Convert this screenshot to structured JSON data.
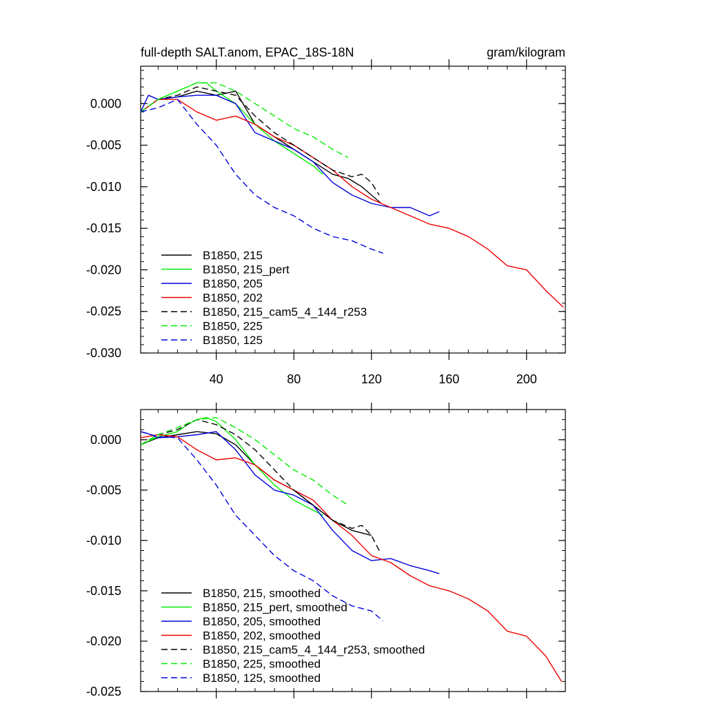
{
  "chart_data": [
    {
      "type": "line",
      "title": "full-depth SALT.anom, EPAC_18S-18N",
      "title_right": "gram/kilogram",
      "xlim": [
        1,
        220
      ],
      "ylim": [
        -0.03,
        0.0045
      ],
      "xticks": [
        40,
        80,
        120,
        160,
        200
      ],
      "xtick_labels": [
        "40",
        "80",
        "120",
        "160",
        "200"
      ],
      "yticks": [
        0.0,
        -0.005,
        -0.01,
        -0.015,
        -0.02,
        -0.025,
        -0.03
      ],
      "ytick_labels": [
        "0.000",
        "-0.005",
        "-0.010",
        "-0.015",
        "-0.020",
        "-0.025",
        "-0.030"
      ],
      "legend_position": "bottom-left",
      "series": [
        {
          "name": "B1850, 215",
          "color": "#000000",
          "dash": "solid",
          "x": [
            1,
            10,
            20,
            30,
            40,
            50,
            60,
            70,
            80,
            90,
            100,
            108,
            115,
            120,
            125
          ],
          "y": [
            -0.001,
            0.0005,
            0.0008,
            0.0015,
            0.001,
            0.0015,
            -0.0025,
            -0.004,
            -0.0055,
            -0.007,
            -0.0085,
            -0.009,
            -0.01,
            -0.011,
            -0.012
          ]
        },
        {
          "name": "B1850, 215_pert",
          "color": "#00ee00",
          "dash": "solid",
          "x": [
            1,
            10,
            20,
            25,
            30,
            35,
            40,
            50,
            60,
            70,
            80,
            90,
            95
          ],
          "y": [
            -0.001,
            0.0005,
            0.0015,
            0.002,
            0.0025,
            0.0025,
            0.0015,
            0.0,
            -0.0025,
            -0.0045,
            -0.006,
            -0.0075,
            -0.0085
          ]
        },
        {
          "name": "B1850, 205",
          "color": "#0000dd",
          "dash": "solid",
          "x": [
            1,
            5,
            10,
            20,
            30,
            40,
            50,
            60,
            70,
            80,
            90,
            100,
            110,
            120,
            130,
            140,
            150,
            155
          ],
          "y": [
            -0.001,
            0.001,
            0.0005,
            0.0008,
            0.001,
            0.001,
            0.0,
            -0.0035,
            -0.0045,
            -0.0055,
            -0.007,
            -0.0095,
            -0.011,
            -0.012,
            -0.0125,
            -0.0125,
            -0.0135,
            -0.013
          ]
        },
        {
          "name": "B1850, 202",
          "color": "#ee0000",
          "dash": "solid",
          "x": [
            1,
            10,
            20,
            30,
            40,
            50,
            60,
            70,
            80,
            90,
            100,
            110,
            120,
            130,
            140,
            150,
            160,
            170,
            180,
            190,
            200,
            210,
            219
          ],
          "y": [
            -0.001,
            0.0005,
            0.0005,
            -0.001,
            -0.002,
            -0.0015,
            -0.0025,
            -0.004,
            -0.005,
            -0.0065,
            -0.008,
            -0.01,
            -0.0115,
            -0.0125,
            -0.0135,
            -0.0145,
            -0.015,
            -0.016,
            -0.0175,
            -0.0195,
            -0.02,
            -0.0225,
            -0.0245
          ]
        },
        {
          "name": "B1850, 215_cam5_4_144_r253",
          "color": "#000000",
          "dash": "dashed",
          "x": [
            1,
            10,
            20,
            30,
            40,
            50,
            60,
            70,
            80,
            90,
            100,
            110,
            115,
            120,
            124
          ],
          "y": [
            -0.001,
            0.0005,
            0.001,
            0.002,
            0.0015,
            0.001,
            -0.0015,
            -0.0035,
            -0.005,
            -0.0065,
            -0.008,
            -0.0088,
            -0.0085,
            -0.0095,
            -0.011
          ]
        },
        {
          "name": "B1850, 225",
          "color": "#00ee00",
          "dash": "dashed",
          "x": [
            1,
            10,
            20,
            30,
            40,
            50,
            60,
            70,
            80,
            90,
            100,
            108
          ],
          "y": [
            -0.001,
            0.0005,
            0.0015,
            0.0025,
            0.0025,
            0.0015,
            0.0,
            -0.0015,
            -0.003,
            -0.004,
            -0.0055,
            -0.0065
          ]
        },
        {
          "name": "B1850, 125",
          "color": "#0000dd",
          "dash": "dashed",
          "x": [
            1,
            10,
            20,
            30,
            40,
            50,
            60,
            70,
            80,
            90,
            100,
            110,
            120,
            126
          ],
          "y": [
            -0.001,
            -0.0005,
            0.0005,
            -0.0025,
            -0.005,
            -0.0085,
            -0.011,
            -0.0125,
            -0.0135,
            -0.015,
            -0.016,
            -0.0165,
            -0.0175,
            -0.018
          ]
        }
      ]
    },
    {
      "type": "line",
      "title": "",
      "xlim": [
        1,
        220
      ],
      "ylim": [
        -0.025,
        0.003
      ],
      "xticks": [
        40,
        80,
        120,
        160,
        200
      ],
      "xtick_labels": [],
      "yticks": [
        0.0,
        -0.005,
        -0.01,
        -0.015,
        -0.02,
        -0.025
      ],
      "ytick_labels": [
        "0.000",
        "-0.005",
        "-0.010",
        "-0.015",
        "-0.020",
        "-0.025"
      ],
      "legend_position": "bottom-left",
      "series": [
        {
          "name": "B1850, 215, smoothed",
          "color": "#000000",
          "dash": "solid",
          "x": [
            1,
            10,
            20,
            30,
            40,
            50,
            60,
            70,
            80,
            90,
            100,
            110,
            120
          ],
          "y": [
            -0.0005,
            0.0002,
            0.0005,
            0.0008,
            0.0006,
            -0.0005,
            -0.0025,
            -0.004,
            -0.005,
            -0.0065,
            -0.008,
            -0.009,
            -0.0095
          ]
        },
        {
          "name": "B1850, 215_pert, smoothed",
          "color": "#00ee00",
          "dash": "solid",
          "x": [
            1,
            10,
            20,
            25,
            30,
            35,
            40,
            50,
            60,
            70,
            80,
            90,
            95
          ],
          "y": [
            -0.0005,
            0.0003,
            0.0008,
            0.0015,
            0.002,
            0.0022,
            0.0018,
            0.0,
            -0.0025,
            -0.0045,
            -0.006,
            -0.007,
            -0.0075
          ]
        },
        {
          "name": "B1850, 205, smoothed",
          "color": "#0000dd",
          "dash": "solid",
          "x": [
            1,
            5,
            10,
            20,
            30,
            40,
            50,
            60,
            70,
            80,
            90,
            100,
            110,
            120,
            130,
            140,
            150,
            155
          ],
          "y": [
            0.0008,
            0.0006,
            0.0002,
            0.0003,
            0.0005,
            0.0008,
            -0.001,
            -0.0035,
            -0.005,
            -0.0055,
            -0.0065,
            -0.009,
            -0.011,
            -0.012,
            -0.0118,
            -0.0125,
            -0.013,
            -0.0133
          ]
        },
        {
          "name": "B1850, 202, smoothed",
          "color": "#ee0000",
          "dash": "solid",
          "x": [
            1,
            10,
            20,
            30,
            40,
            50,
            60,
            70,
            80,
            90,
            100,
            110,
            120,
            130,
            140,
            150,
            160,
            170,
            180,
            190,
            200,
            210,
            218
          ],
          "y": [
            0.0002,
            0.0005,
            0.0003,
            -0.001,
            -0.002,
            -0.0018,
            -0.0025,
            -0.004,
            -0.005,
            -0.006,
            -0.008,
            -0.0095,
            -0.0115,
            -0.0122,
            -0.0135,
            -0.0145,
            -0.015,
            -0.0158,
            -0.017,
            -0.019,
            -0.0195,
            -0.0215,
            -0.024
          ]
        },
        {
          "name": "B1850, 215_cam5_4_144_r253, smoothed",
          "color": "#000000",
          "dash": "dashed",
          "x": [
            1,
            10,
            20,
            30,
            40,
            50,
            60,
            70,
            80,
            90,
            100,
            110,
            115,
            120,
            124
          ],
          "y": [
            -0.0005,
            0.0005,
            0.001,
            0.002,
            0.0015,
            0.0005,
            -0.001,
            -0.003,
            -0.005,
            -0.0065,
            -0.008,
            -0.0088,
            -0.0085,
            -0.0095,
            -0.011
          ]
        },
        {
          "name": "B1850, 225, smoothed",
          "color": "#00ee00",
          "dash": "dashed",
          "x": [
            1,
            10,
            20,
            30,
            40,
            50,
            60,
            70,
            80,
            90,
            100,
            108
          ],
          "y": [
            -0.0005,
            0.0005,
            0.0012,
            0.002,
            0.0022,
            0.0012,
            0.0,
            -0.0015,
            -0.003,
            -0.004,
            -0.0055,
            -0.0065
          ]
        },
        {
          "name": "B1850, 125, smoothed",
          "color": "#0000dd",
          "dash": "dashed",
          "x": [
            1,
            10,
            20,
            30,
            40,
            50,
            60,
            70,
            80,
            90,
            100,
            110,
            120,
            126
          ],
          "y": [
            0.0008,
            0.0003,
            0.0002,
            -0.002,
            -0.0045,
            -0.0075,
            -0.0095,
            -0.0115,
            -0.013,
            -0.014,
            -0.0155,
            -0.0165,
            -0.017,
            -0.018
          ]
        }
      ]
    }
  ]
}
